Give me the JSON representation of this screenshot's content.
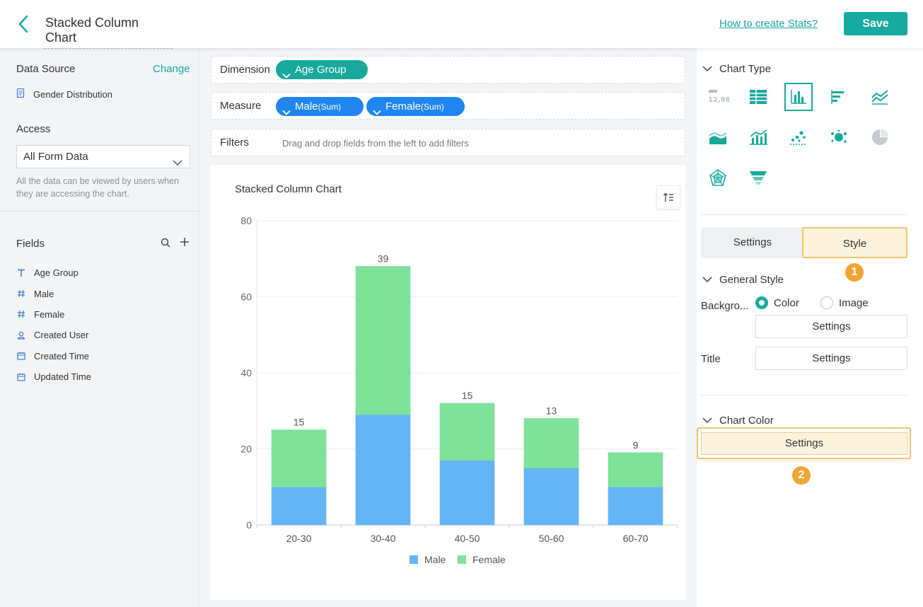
{
  "header": {
    "title": "Stacked Column Chart",
    "help_link": "How to create Stats?",
    "save_label": "Save"
  },
  "sidebar": {
    "data_source_title": "Data Source",
    "change_label": "Change",
    "data_source_name": "Gender Distribution",
    "access_title": "Access",
    "access_value": "All Form Data",
    "access_note": "All the data can be viewed by users when they are accessing the chart.",
    "fields_title": "Fields",
    "fields": [
      {
        "label": "Age Group",
        "icon": "text-type-icon"
      },
      {
        "label": "Male",
        "icon": "number-type-icon"
      },
      {
        "label": "Female",
        "icon": "number-type-icon"
      },
      {
        "label": "Created User",
        "icon": "user-type-icon"
      },
      {
        "label": "Created Time",
        "icon": "date-type-icon"
      },
      {
        "label": "Updated Time",
        "icon": "date-type-icon"
      }
    ]
  },
  "config": {
    "dimension_label": "Dimension",
    "dimension_pill": "Age Group",
    "measure_label": "Measure",
    "measure_pills": [
      {
        "name": "Male",
        "agg": "(Sum)"
      },
      {
        "name": "Female",
        "agg": "(Sum)"
      }
    ],
    "filters_label": "Filters",
    "filters_hint": "Drag and drop fields from the left to add filters"
  },
  "chart_data": {
    "type": "bar",
    "stacked": true,
    "title": "Stacked Column Chart",
    "categories": [
      "20-30",
      "30-40",
      "40-50",
      "50-60",
      "60-70"
    ],
    "series": [
      {
        "name": "Male",
        "values": [
          10,
          29,
          17,
          15,
          10
        ],
        "color": "#64b5f6"
      },
      {
        "name": "Female",
        "values": [
          15,
          39,
          15,
          13,
          9
        ],
        "color": "#7fe29a"
      }
    ],
    "ylim": [
      0,
      80
    ],
    "yticks": [
      0,
      20,
      40,
      60,
      80
    ],
    "grid": true,
    "legend": "bottom"
  },
  "right_panel": {
    "chart_type_title": "Chart Type",
    "tabs": [
      "Settings",
      "Style"
    ],
    "active_tab": "Style",
    "general_style_title": "General Style",
    "background_label": "Backgro...",
    "radio_color": "Color",
    "radio_image": "Image",
    "settings_label": "Settings",
    "title_label": "Title",
    "chart_color_title": "Chart Color",
    "badge_1": "1",
    "badge_2": "2",
    "accent": "#16a99c",
    "highlight": "#f2c36b"
  }
}
